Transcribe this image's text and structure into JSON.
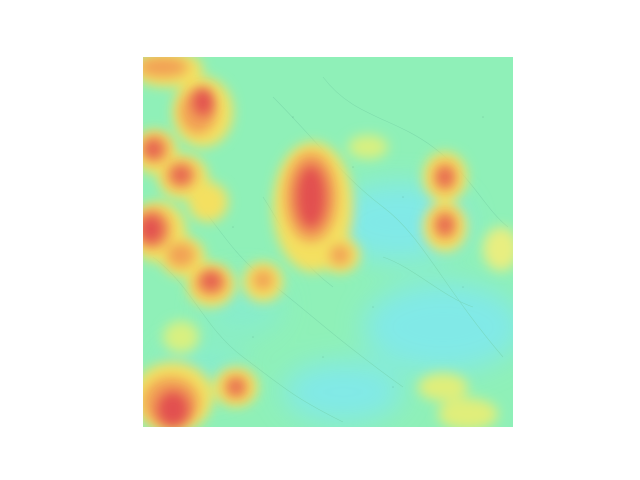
{
  "figure": {
    "kind": "heatmap-overlay-on-aerial-map",
    "background_color": "#ffffff",
    "base_color": "#8ff0b8",
    "palette": [
      "#7fe8f0",
      "#8ff0b8",
      "#c8f08a",
      "#f4e060",
      "#f2a055",
      "#e2504f"
    ],
    "axes_visible": false,
    "colorbar_visible": false,
    "labels_visible": false
  }
}
